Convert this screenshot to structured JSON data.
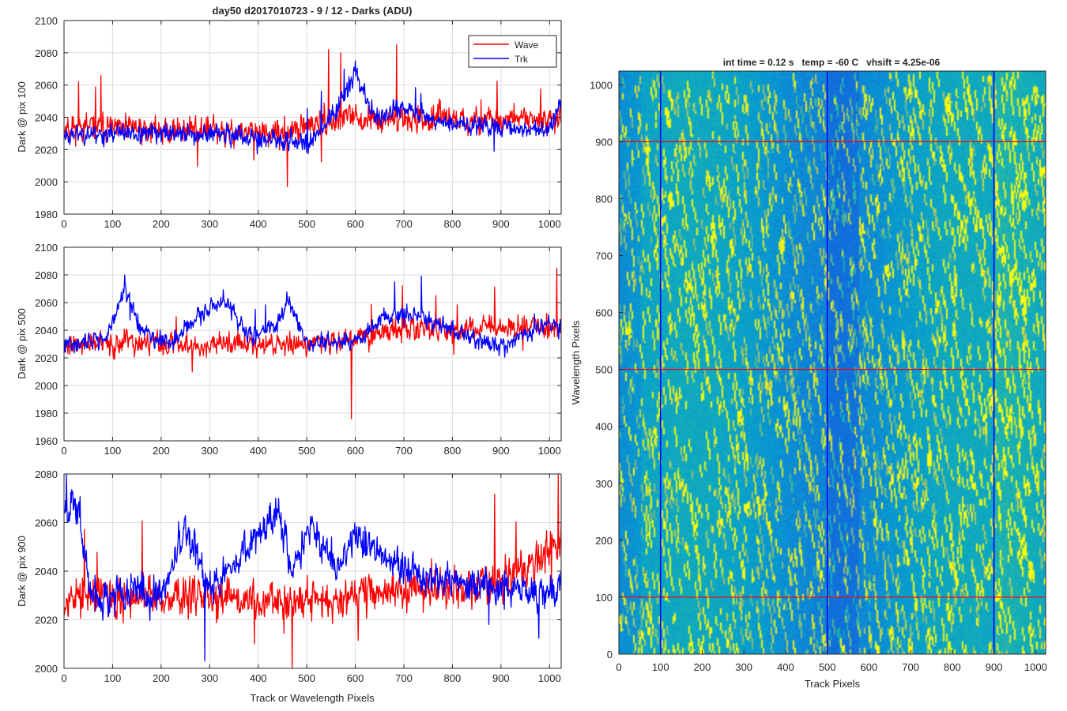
{
  "figure": {
    "title": "day50 d2017010723 - 9 / 12 - Darks (ADU)"
  },
  "chart_data": [
    {
      "type": "line",
      "title": "day50 d2017010723 - 9 / 12 - Darks (ADU)",
      "xlabel": "",
      "ylabel": "Dark @ pix 100",
      "xlim": [
        0,
        1024
      ],
      "ylim": [
        1980,
        2100
      ],
      "xticks": [
        0,
        100,
        200,
        300,
        400,
        500,
        600,
        700,
        800,
        900,
        1000
      ],
      "yticks": [
        1980,
        2000,
        2020,
        2040,
        2060,
        2080,
        2100
      ],
      "grid": true,
      "legend": {
        "entries": [
          "Wave",
          "Trk"
        ],
        "location": "top-right"
      },
      "series": [
        {
          "name": "Wave",
          "color": "#ff0000",
          "seed": 11,
          "base": 2034,
          "noise": 8,
          "bursts": 12,
          "features": [
            {
              "x": 460,
              "y": 1997
            },
            {
              "x": 545,
              "y": 2082
            },
            {
              "x": 570,
              "y": 2080
            },
            {
              "x": 685,
              "y": 2085
            },
            {
              "x": 30,
              "y": 2062
            }
          ],
          "anchors": [
            [
              0,
              2034
            ],
            [
              300,
              2032
            ],
            [
              430,
              2028
            ],
            [
              520,
              2036
            ],
            [
              600,
              2040
            ],
            [
              800,
              2038
            ],
            [
              1024,
              2040
            ]
          ]
        },
        {
          "name": "Trk",
          "color": "#0000ff",
          "seed": 23,
          "base": 2030,
          "noise": 6,
          "bursts": 8,
          "features": [
            {
              "x": 600,
              "y": 2075
            }
          ],
          "anchors": [
            [
              0,
              2030
            ],
            [
              300,
              2030
            ],
            [
              500,
              2024
            ],
            [
              560,
              2045
            ],
            [
              600,
              2068
            ],
            [
              640,
              2040
            ],
            [
              700,
              2045
            ],
            [
              800,
              2036
            ],
            [
              1000,
              2032
            ],
            [
              1024,
              2050
            ]
          ]
        }
      ]
    },
    {
      "type": "line",
      "title": "",
      "xlabel": "",
      "ylabel": "Dark @ pix 500",
      "xlim": [
        0,
        1024
      ],
      "ylim": [
        1960,
        2100
      ],
      "xticks": [
        0,
        100,
        200,
        300,
        400,
        500,
        600,
        700,
        800,
        900,
        1000
      ],
      "yticks": [
        1960,
        1980,
        2000,
        2020,
        2040,
        2060,
        2080,
        2100
      ],
      "grid": true,
      "series": [
        {
          "name": "Wave",
          "color": "#ff0000",
          "seed": 37,
          "base": 2030,
          "noise": 8,
          "bursts": 10,
          "features": [
            {
              "x": 592,
              "y": 1976
            },
            {
              "x": 1015,
              "y": 2085
            }
          ],
          "anchors": [
            [
              0,
              2030
            ],
            [
              500,
              2030
            ],
            [
              700,
              2040
            ],
            [
              1024,
              2042
            ]
          ]
        },
        {
          "name": "Trk",
          "color": "#0000ff",
          "seed": 41,
          "base": 2030,
          "noise": 6,
          "bursts": 6,
          "features": [
            {
              "x": 125,
              "y": 2080
            }
          ],
          "anchors": [
            [
              0,
              2030
            ],
            [
              90,
              2035
            ],
            [
              125,
              2070
            ],
            [
              160,
              2040
            ],
            [
              220,
              2030
            ],
            [
              260,
              2045
            ],
            [
              330,
              2062
            ],
            [
              380,
              2035
            ],
            [
              440,
              2045
            ],
            [
              460,
              2062
            ],
            [
              500,
              2030
            ],
            [
              600,
              2032
            ],
            [
              660,
              2050
            ],
            [
              720,
              2052
            ],
            [
              800,
              2040
            ],
            [
              900,
              2028
            ],
            [
              1000,
              2045
            ],
            [
              1024,
              2040
            ]
          ]
        }
      ]
    },
    {
      "type": "line",
      "title": "",
      "xlabel": "Track or Wavelength Pixels",
      "ylabel": "Dark @ pix 900",
      "xlim": [
        0,
        1024
      ],
      "ylim": [
        2000,
        2080
      ],
      "xticks": [
        0,
        100,
        200,
        300,
        400,
        500,
        600,
        700,
        800,
        900,
        1000
      ],
      "yticks": [
        2000,
        2020,
        2040,
        2060,
        2080
      ],
      "grid": true,
      "series": [
        {
          "name": "Wave",
          "color": "#ff0000",
          "seed": 53,
          "base": 2028,
          "noise": 8,
          "bursts": 14,
          "features": [
            {
              "x": 1018,
              "y": 2080
            },
            {
              "x": 470,
              "y": 2000
            }
          ],
          "anchors": [
            [
              0,
              2030
            ],
            [
              500,
              2028
            ],
            [
              700,
              2032
            ],
            [
              900,
              2036
            ],
            [
              1024,
              2050
            ]
          ]
        },
        {
          "name": "Trk",
          "color": "#0000ff",
          "seed": 67,
          "base": 2033,
          "noise": 7,
          "bursts": 6,
          "features": [
            {
              "x": 5,
              "y": 2080
            },
            {
              "x": 290,
              "y": 2003
            }
          ],
          "anchors": [
            [
              0,
              2068
            ],
            [
              30,
              2065
            ],
            [
              55,
              2030
            ],
            [
              200,
              2032
            ],
            [
              250,
              2060
            ],
            [
              300,
              2032
            ],
            [
              440,
              2065
            ],
            [
              470,
              2040
            ],
            [
              510,
              2060
            ],
            [
              560,
              2040
            ],
            [
              600,
              2055
            ],
            [
              700,
              2040
            ],
            [
              1000,
              2030
            ],
            [
              1024,
              2035
            ]
          ]
        }
      ]
    },
    {
      "type": "heatmap",
      "title": "int time = 0.12 s   temp = -60 C   vhsift = 4.25e-06",
      "xlabel": "Track Pixels",
      "ylabel": "Wavelength Pixels",
      "xlim": [
        0,
        1024
      ],
      "ylim": [
        0,
        1024
      ],
      "xticks": [
        0,
        100,
        200,
        300,
        400,
        500,
        600,
        700,
        800,
        900,
        1000
      ],
      "yticks": [
        0,
        100,
        200,
        300,
        400,
        500,
        600,
        700,
        800,
        900,
        1000
      ],
      "colormap": "parula",
      "vertical_markers": {
        "color": "#0000ff",
        "x": [
          100,
          500,
          900
        ]
      },
      "horizontal_markers": {
        "color": "#ff0000",
        "y": [
          100,
          500,
          900
        ]
      },
      "seed": 97
    }
  ]
}
